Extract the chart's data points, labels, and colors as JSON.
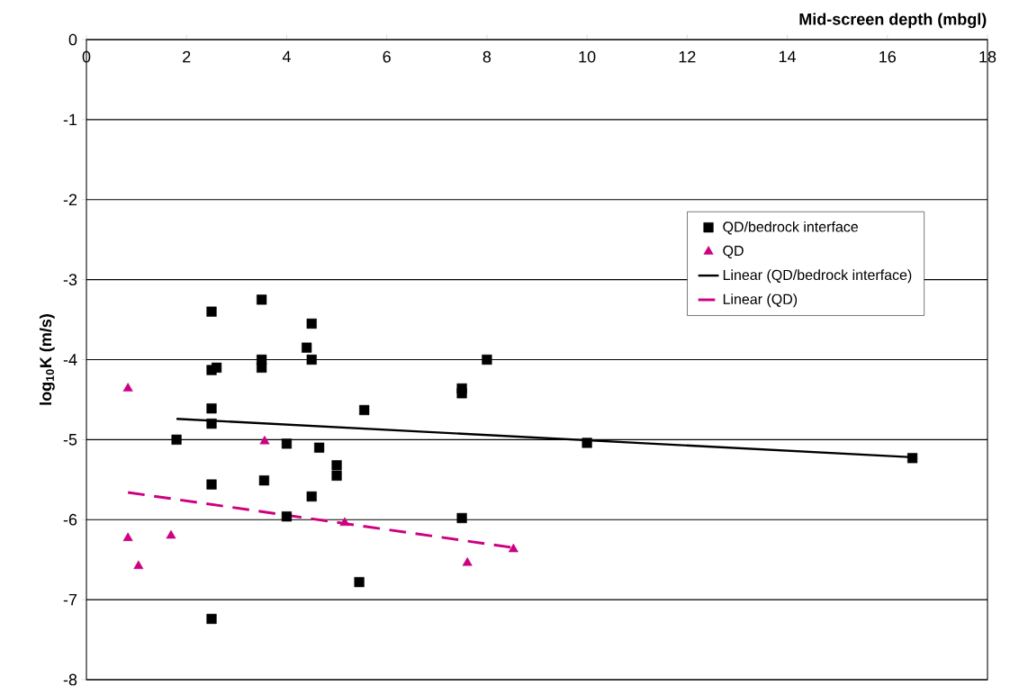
{
  "chart_data": {
    "type": "scatter",
    "xlabel": "Mid-screen depth (mbgl)",
    "ylabel": "log$_{10}$K (m/s)",
    "xlim": [
      0,
      18
    ],
    "ylim": [
      -8,
      0
    ],
    "xticks": [
      0,
      2,
      4,
      6,
      8,
      10,
      12,
      14,
      16,
      18
    ],
    "yticks": [
      -8,
      -7,
      -6,
      -5,
      -4,
      -3,
      -2,
      -1,
      0
    ],
    "grid": "y",
    "legend": "right",
    "series": [
      {
        "name": "QD/bedrock interface",
        "marker": "square",
        "color": "#000000",
        "x": [
          2.5,
          3.5,
          4.5,
          4.4,
          4.5,
          3.5,
          3.5,
          2.6,
          2.5,
          8.0,
          7.5,
          7.5,
          2.5,
          2.5,
          5.55,
          1.8,
          4.0,
          4.65,
          5.0,
          5.0,
          2.5,
          3.55,
          4.5,
          4.0,
          7.5,
          5.45,
          2.5,
          10.0,
          16.5
        ],
        "values": [
          -3.4,
          -3.25,
          -3.55,
          -3.85,
          -4.0,
          -4.0,
          -4.1,
          -4.1,
          -4.13,
          -4.0,
          -4.36,
          -4.42,
          -4.61,
          -4.8,
          -4.63,
          -5.0,
          -5.05,
          -5.1,
          -5.32,
          -5.45,
          -5.56,
          -5.51,
          -5.71,
          -5.96,
          -5.98,
          -6.78,
          -7.24,
          -5.04,
          -5.23
        ]
      },
      {
        "name": "QD",
        "marker": "triangle",
        "color": "#cc0080",
        "x": [
          0.83,
          3.56,
          0.83,
          1.69,
          1.04,
          5.16,
          7.61,
          8.53
        ],
        "values": [
          -4.36,
          -5.02,
          -6.23,
          -6.2,
          -6.58,
          -6.04,
          -6.54,
          -6.37
        ]
      },
      {
        "name": "Linear (QD/bedrock interface)",
        "type": "line",
        "line_style": "solid",
        "color": "#000000",
        "x": [
          1.8,
          16.5
        ],
        "values": [
          -4.74,
          -5.22
        ]
      },
      {
        "name": "Linear (QD)",
        "type": "line",
        "line_style": "dashed",
        "color": "#cc0080",
        "x": [
          0.83,
          8.53
        ],
        "values": [
          -5.66,
          -6.35
        ]
      }
    ]
  }
}
